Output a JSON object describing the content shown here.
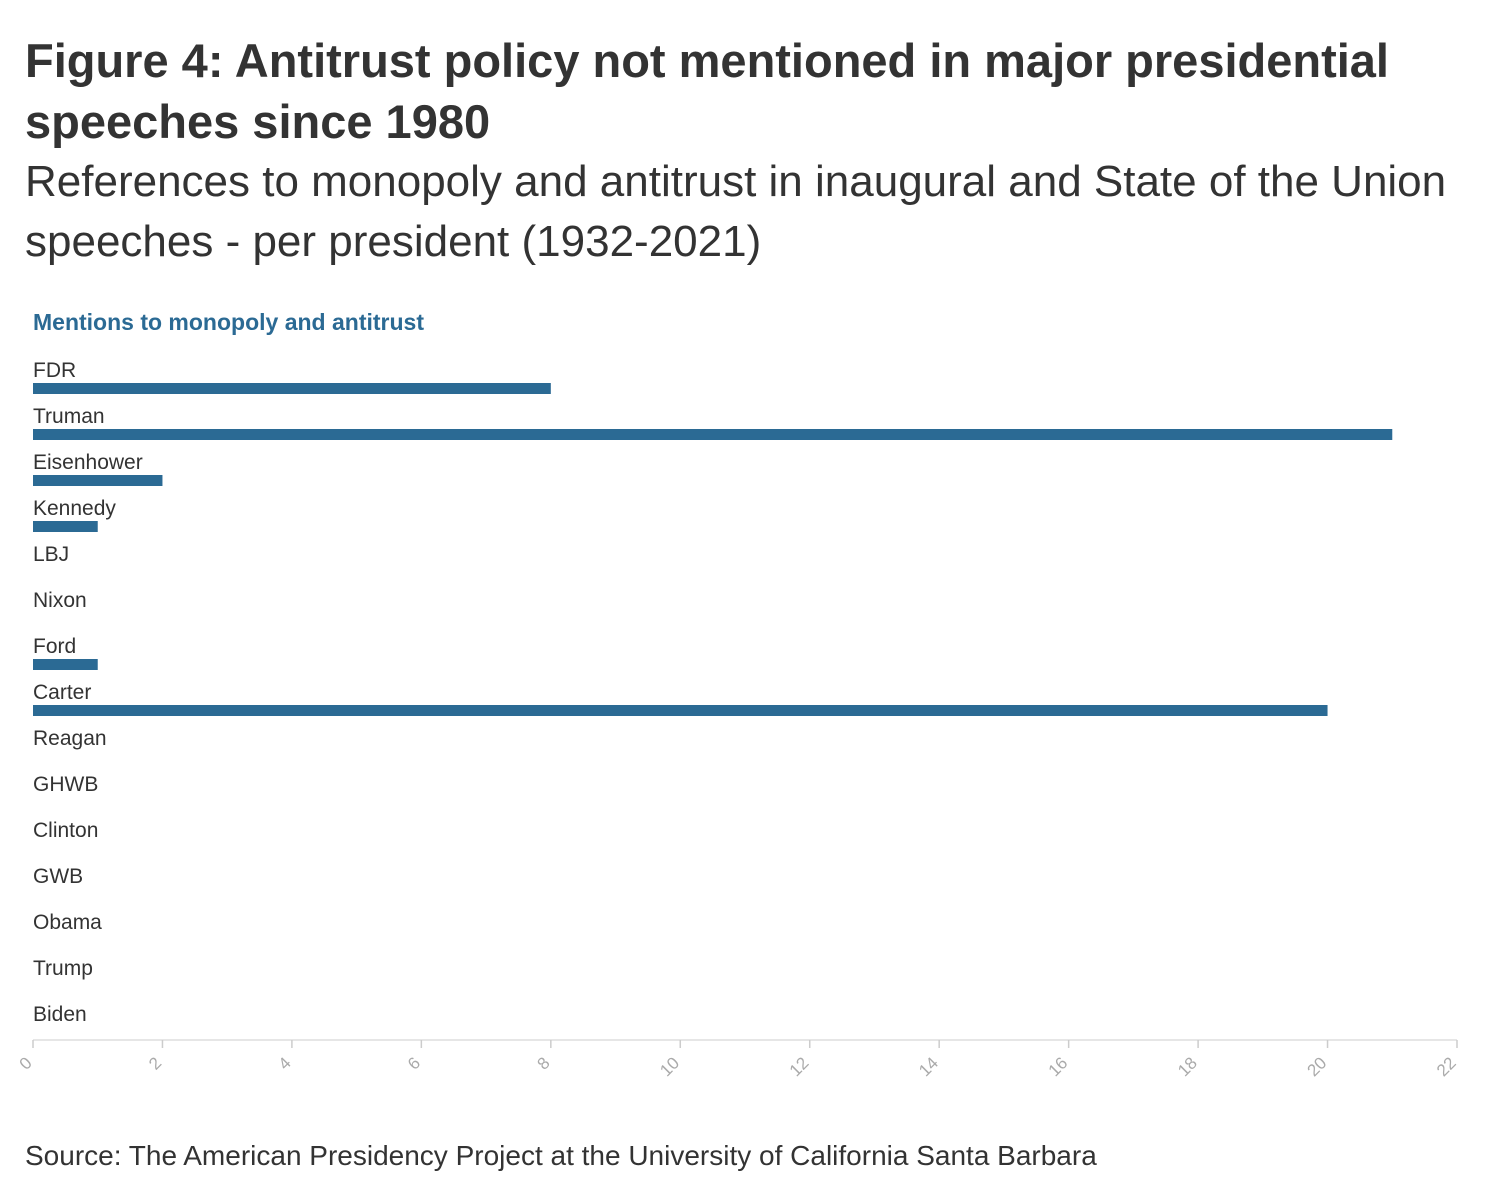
{
  "header": {
    "title": "Figure 4: Antitrust policy not mentioned in major presidential speeches since 1980",
    "subtitle": "References to monopoly and antitrust in inaugural and State of the Union speeches - per president (1932-2021)"
  },
  "footer": {
    "source": "Source: The American Presidency Project at the University of California Santa Barbara"
  },
  "chart_data": {
    "type": "bar",
    "orientation": "horizontal",
    "categories": [
      "FDR",
      "Truman",
      "Eisenhower",
      "Kennedy",
      "LBJ",
      "Nixon",
      "Ford",
      "Carter",
      "Reagan",
      "GHWB",
      "Clinton",
      "GWB",
      "Obama",
      "Trump",
      "Biden"
    ],
    "series": [
      {
        "name": "Mentions to monopoly and antitrust",
        "values": [
          8,
          21,
          2,
          1,
          0,
          0,
          1,
          20,
          0,
          0,
          0,
          0,
          0,
          0,
          0
        ],
        "color": "#2b6a94"
      }
    ],
    "xlim": [
      0,
      22
    ],
    "xticks": [
      "0",
      "2",
      "4",
      "6",
      "8",
      "10",
      "12",
      "14",
      "16",
      "18",
      "20",
      "22"
    ],
    "xlabel": "",
    "ylabel": "",
    "grid": false
  }
}
